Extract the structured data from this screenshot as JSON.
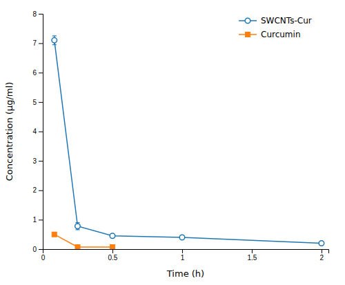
{
  "chart_data": {
    "type": "line",
    "x_label": "Time (h)",
    "y_label": "Concentration (µg/ml)",
    "series": [
      {
        "name": "SWCNTs-Cur",
        "x": [
          0.083,
          0.25,
          0.5,
          1.0,
          2.0
        ],
        "values": [
          7.1,
          0.78,
          0.45,
          0.4,
          0.2
        ],
        "errors": [
          0.15,
          0.12,
          0.05,
          0.04,
          0.03
        ],
        "marker": "circle"
      },
      {
        "name": "Curcumin",
        "x": [
          0.083,
          0.25,
          0.5
        ],
        "values": [
          0.5,
          0.07,
          0.07
        ],
        "errors": [
          0.04,
          0.02,
          0.02
        ],
        "marker": "square"
      }
    ],
    "xlim": [
      0,
      2.05
    ],
    "ylim": [
      0,
      8
    ],
    "xticks": [
      0,
      0.5,
      1,
      1.5,
      2
    ],
    "yticks": [
      0,
      1,
      2,
      3,
      4,
      5,
      6,
      7,
      8
    ],
    "legend": "upper right"
  }
}
